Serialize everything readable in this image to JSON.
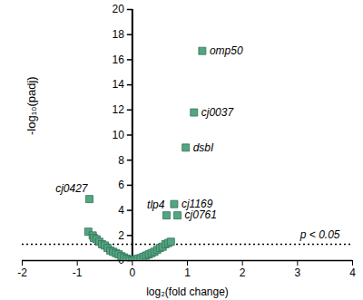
{
  "chart_data": {
    "type": "scatter",
    "x_label": "log₂(fold change)",
    "y_label": "-log₁₀(padj)",
    "xlim": [
      -2,
      4
    ],
    "ylim": [
      0,
      20
    ],
    "xticks": [
      -2,
      -1,
      0,
      1,
      2,
      3,
      4
    ],
    "yticks": [
      0,
      2,
      4,
      6,
      8,
      10,
      12,
      14,
      16,
      18,
      20
    ],
    "threshold": 1.3,
    "threshold_label": "p < 0.05",
    "color": "#55a582",
    "marker": "square",
    "points": [
      {
        "x": 1.27,
        "y": 16.7,
        "label": "omp50"
      },
      {
        "x": 1.12,
        "y": 11.8,
        "label": "cj0037"
      },
      {
        "x": 0.97,
        "y": 9.0,
        "label": "dsbI"
      },
      {
        "x": 0.76,
        "y": 4.5,
        "label": "cj1169"
      },
      {
        "x": 0.62,
        "y": 3.6,
        "label": "tlp4"
      },
      {
        "x": 0.82,
        "y": 3.6,
        "label": "cj0761"
      },
      {
        "x": -0.78,
        "y": 4.9,
        "label": "cj0427"
      },
      {
        "x": -0.8,
        "y": 2.3
      },
      {
        "x": -0.72,
        "y": 2.0
      },
      {
        "x": -0.7,
        "y": 1.8
      },
      {
        "x": -0.65,
        "y": 1.7
      },
      {
        "x": -0.6,
        "y": 1.5
      },
      {
        "x": -0.55,
        "y": 1.3
      },
      {
        "x": -0.5,
        "y": 1.2
      },
      {
        "x": -0.45,
        "y": 1.0
      },
      {
        "x": -0.4,
        "y": 0.8
      },
      {
        "x": -0.35,
        "y": 0.7
      },
      {
        "x": -0.3,
        "y": 0.6
      },
      {
        "x": -0.25,
        "y": 0.5
      },
      {
        "x": -0.2,
        "y": 0.35
      },
      {
        "x": -0.15,
        "y": 0.25
      },
      {
        "x": -0.1,
        "y": 0.15
      },
      {
        "x": -0.05,
        "y": 0.05
      },
      {
        "x": 0.0,
        "y": 0.0
      },
      {
        "x": 0.05,
        "y": 0.05
      },
      {
        "x": 0.1,
        "y": 0.15
      },
      {
        "x": 0.15,
        "y": 0.2
      },
      {
        "x": 0.2,
        "y": 0.3
      },
      {
        "x": 0.25,
        "y": 0.4
      },
      {
        "x": 0.3,
        "y": 0.5
      },
      {
        "x": 0.35,
        "y": 0.6
      },
      {
        "x": 0.4,
        "y": 0.7
      },
      {
        "x": 0.45,
        "y": 0.85
      },
      {
        "x": 0.5,
        "y": 1.0
      },
      {
        "x": 0.55,
        "y": 1.1
      },
      {
        "x": 0.6,
        "y": 1.3
      },
      {
        "x": 0.65,
        "y": 1.4
      },
      {
        "x": 0.7,
        "y": 1.5
      }
    ]
  }
}
